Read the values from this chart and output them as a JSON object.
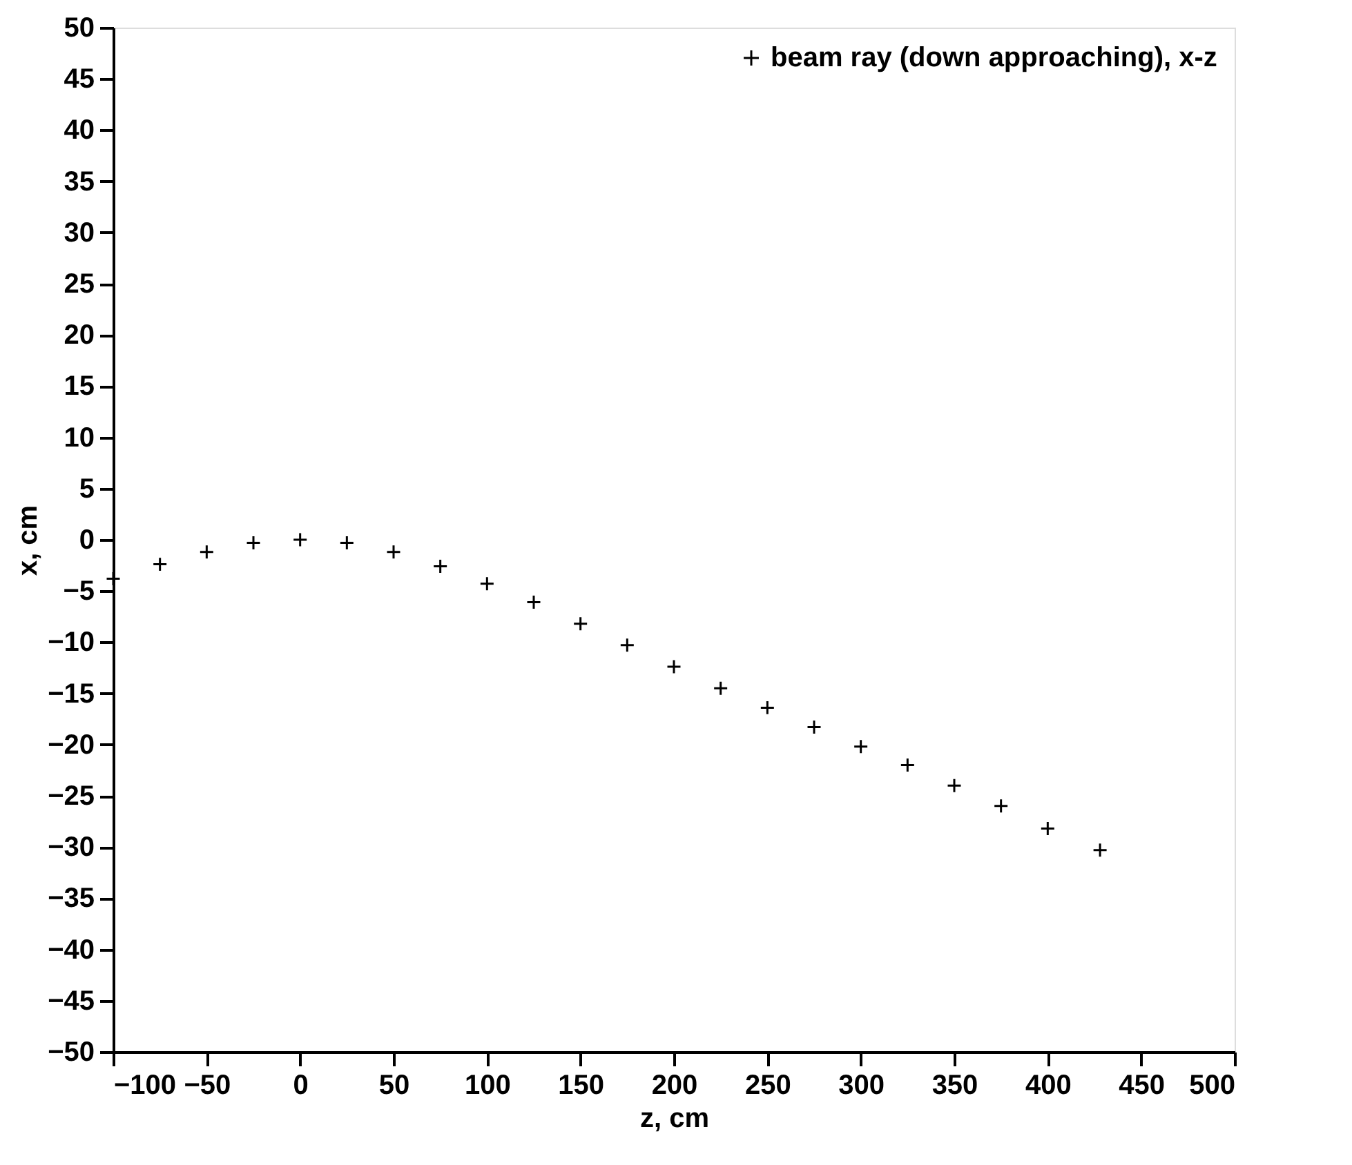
{
  "chart_data": {
    "type": "scatter",
    "xlabel": "z, cm",
    "ylabel": "x, cm",
    "x": [
      -100,
      -75,
      -50,
      -25,
      0,
      25,
      50,
      75,
      100,
      125,
      150,
      175,
      200,
      225,
      250,
      275,
      300,
      325,
      350,
      375,
      400,
      428
    ],
    "series": [
      {
        "name": "beam ray (down approaching), x-z",
        "color": "#000000",
        "values": [
          -3.8,
          -2.4,
          -1.2,
          -0.3,
          0,
          -0.3,
          -1.2,
          -2.6,
          -4.3,
          -6.1,
          -8.2,
          -10.3,
          -12.4,
          -14.5,
          -16.4,
          -18.3,
          -20.2,
          -22,
          -24,
          -26,
          -28.2,
          -30.3
        ]
      }
    ],
    "xlim": [
      -100,
      500
    ],
    "xticks": [
      -100,
      -50,
      0,
      50,
      100,
      150,
      200,
      250,
      300,
      350,
      400,
      450,
      500
    ],
    "ylim": [
      -50,
      50
    ],
    "yticks": [
      -50,
      -45,
      -40,
      -35,
      -30,
      -25,
      -20,
      -15,
      -10,
      -5,
      0,
      5,
      10,
      15,
      20,
      25,
      30,
      35,
      40,
      45,
      50
    ],
    "grid": false,
    "legend": "top right",
    "marker": "cross"
  }
}
